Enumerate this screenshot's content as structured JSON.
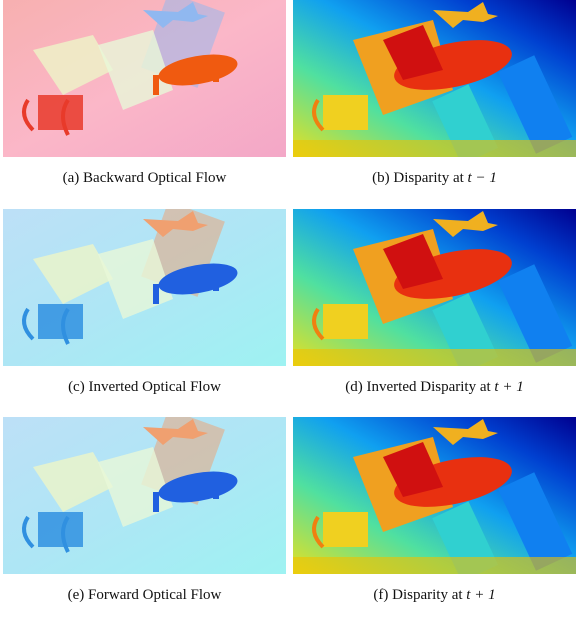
{
  "figure": {
    "panels": [
      {
        "caption": "(a) Backward Optical Flow"
      },
      {
        "caption": "(b) Disparity at",
        "math": "t − 1"
      },
      {
        "caption": "(c) Inverted Optical Flow"
      },
      {
        "caption": "(d) Inverted Disparity at",
        "math": "t + 1"
      },
      {
        "caption": "(e) Forward Optical Flow"
      },
      {
        "caption": "(f) Disparity at",
        "math": "t + 1"
      }
    ]
  }
}
